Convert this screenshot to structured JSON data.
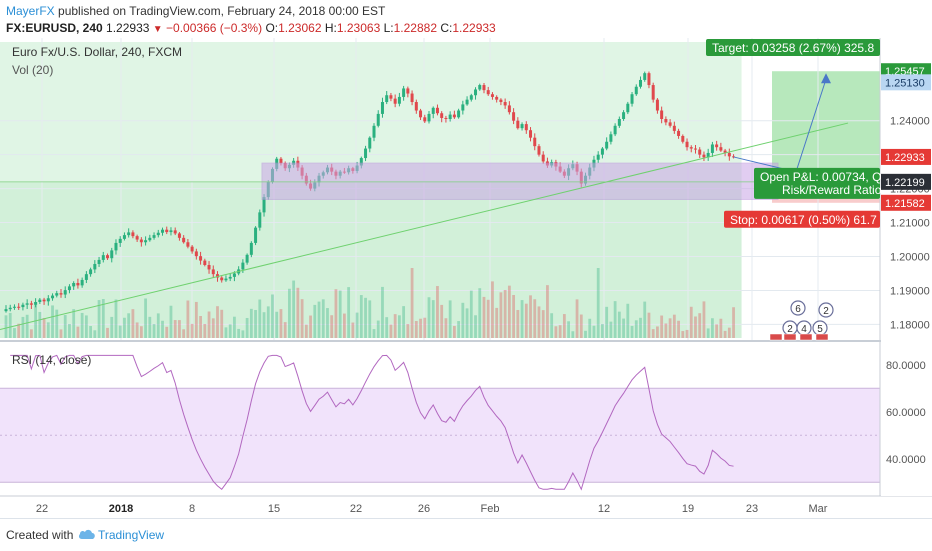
{
  "header": {
    "author": "MayerFX",
    "published_text": "published on TradingView.com, February 24, 2018 00:00 EST",
    "symbol_line": "FX:EURUSD, 240",
    "last": "1.22933",
    "change": "−0.00366 (−0.3%)",
    "open_label": "O:",
    "open": "1.23062",
    "high_label": "H:",
    "high": "1.23063",
    "low_label": "L:",
    "low": "1.22882",
    "close_label": "C:",
    "close": "1.22933"
  },
  "legend": {
    "title": "Euro Fx/U.S. Dollar, 240, FXCM",
    "volume": "Vol (20)",
    "rsi": "RSI (14, close)"
  },
  "trade_box": {
    "target_label": "Target: 0.03258 (2.67%) 325.8",
    "open_pnl_label": "Open P&L: 0.00734, Q",
    "risk_reward_label": "Risk/Reward Ratio",
    "stop_label": "Stop: 0.00617 (0.50%) 61.7"
  },
  "price_labels": [
    {
      "value": "1.25457",
      "kind": "target"
    },
    {
      "value": "1.25130",
      "kind": "blue"
    },
    {
      "value": "1.22933",
      "kind": "last"
    },
    {
      "value": "1.22199",
      "kind": "entry"
    },
    {
      "value": "1.21582",
      "kind": "stop"
    }
  ],
  "event_markers": [
    "6",
    "2",
    "4",
    "2",
    "5"
  ],
  "footer": {
    "created_with": "Created with",
    "brand": "TradingView"
  },
  "colors": {
    "up": "#2ab07f",
    "down": "#e0484c",
    "profit_zone": "#c7ecd0",
    "loss_zone": "#f7c6c6",
    "rsi_band": "#eedcfa",
    "rsi_line": "#b268c0",
    "support_zone": "#c9a6e6",
    "trendline": "#6fd16f",
    "target_green": "#2a9a3a",
    "stop_red": "#e53935"
  },
  "chart_data": {
    "type": "candlestick",
    "price_axis": {
      "ticks": [
        "1.24000",
        "1.23000",
        "1.22000",
        "1.21000",
        "1.20000",
        "1.19000",
        "1.18000"
      ],
      "range": [
        1.176,
        1.262
      ]
    },
    "rsi_axis": {
      "ticks": [
        "80.0000",
        "60.0000",
        "40.0000"
      ],
      "range": [
        25,
        88
      ],
      "band": [
        30,
        70
      ]
    },
    "time_axis": {
      "labels": [
        "22",
        "2018",
        "8",
        "15",
        "22",
        "26",
        "Feb",
        "12",
        "19",
        "23",
        "Mar"
      ]
    },
    "support_zone": [
      1.2168,
      1.2275
    ],
    "entry": 1.22199,
    "target": 1.25457,
    "stop": 1.21582,
    "close_series": [
      1.1845,
      1.1849,
      1.1852,
      1.1851,
      1.1858,
      1.1862,
      1.1858,
      1.1866,
      1.1873,
      1.1868,
      1.1877,
      1.1885,
      1.1892,
      1.1888,
      1.1901,
      1.1912,
      1.1922,
      1.1915,
      1.1931,
      1.1948,
      1.1962,
      1.1978,
      1.199,
      1.2004,
      1.1995,
      1.2018,
      1.204,
      1.2052,
      1.2063,
      1.2071,
      1.206,
      1.205,
      1.2042,
      1.2048,
      1.2055,
      1.2063,
      1.207,
      1.2079,
      1.2072,
      1.2077,
      1.2068,
      1.2055,
      1.2042,
      1.2029,
      1.2015,
      1.2001,
      1.1988,
      1.1975,
      1.1962,
      1.1948,
      1.1938,
      1.193,
      1.1935,
      1.194,
      1.195,
      1.1962,
      1.1982,
      1.2005,
      1.204,
      1.2085,
      1.213,
      1.2175,
      1.222,
      1.2258,
      1.2288,
      1.2275,
      1.226,
      1.227,
      1.2282,
      1.2262,
      1.2238,
      1.2215,
      1.22,
      1.2218,
      1.2238,
      1.2248,
      1.2262,
      1.225,
      1.2238,
      1.225,
      1.2248,
      1.226,
      1.2252,
      1.2268,
      1.229,
      1.2318,
      1.235,
      1.2385,
      1.242,
      1.2455,
      1.2475,
      1.2465,
      1.245,
      1.247,
      1.2495,
      1.248,
      1.2455,
      1.243,
      1.241,
      1.2398,
      1.242,
      1.2438,
      1.2422,
      1.2408,
      1.2405,
      1.2418,
      1.241,
      1.243,
      1.2448,
      1.2462,
      1.2475,
      1.2492,
      1.2505,
      1.249,
      1.2478,
      1.247,
      1.2462,
      1.2455,
      1.2445,
      1.2425,
      1.24,
      1.2378,
      1.239,
      1.2372,
      1.235,
      1.2325,
      1.23,
      1.228,
      1.2268,
      1.2278,
      1.2265,
      1.225,
      1.2238,
      1.226,
      1.2272,
      1.225,
      1.2215,
      1.2238,
      1.2262,
      1.2285,
      1.23,
      1.2318,
      1.2338,
      1.236,
      1.2385,
      1.2405,
      1.2425,
      1.245,
      1.2478,
      1.25,
      1.252,
      1.254,
      1.2505,
      1.2462,
      1.243,
      1.2405,
      1.2395,
      1.2385,
      1.237,
      1.2355,
      1.2338,
      1.2322,
      1.2318,
      1.2315,
      1.23,
      1.2292,
      1.2305,
      1.233,
      1.2322,
      1.2312,
      1.2305,
      1.2295,
      1.22933
    ]
  }
}
